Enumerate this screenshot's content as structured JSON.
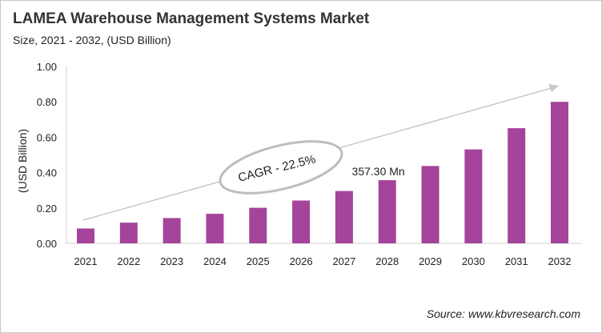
{
  "chart_data": {
    "type": "bar",
    "title": "LAMEA Warehouse Management Systems Market",
    "subtitle": "Size, 2021 - 2032, (USD Billion)",
    "xlabel": "",
    "ylabel": "(USD Billion)",
    "ylim": [
      0,
      1.0
    ],
    "yticks": [
      "0.00",
      "0.20",
      "0.40",
      "0.60",
      "0.80",
      "1.00"
    ],
    "grid": false,
    "categories": [
      "2021",
      "2022",
      "2023",
      "2024",
      "2025",
      "2026",
      "2027",
      "2028",
      "2029",
      "2030",
      "2031",
      "2032"
    ],
    "values": [
      0.084,
      0.117,
      0.143,
      0.167,
      0.201,
      0.242,
      0.296,
      0.357,
      0.437,
      0.531,
      0.651,
      0.8
    ],
    "bar_color": "#A4449A",
    "annotations": {
      "data_label": "357.30 Mn",
      "data_label_category": "2028",
      "cagr": "CAGR - 22.5%"
    },
    "source": "Source: www.kbvresearch.com"
  }
}
